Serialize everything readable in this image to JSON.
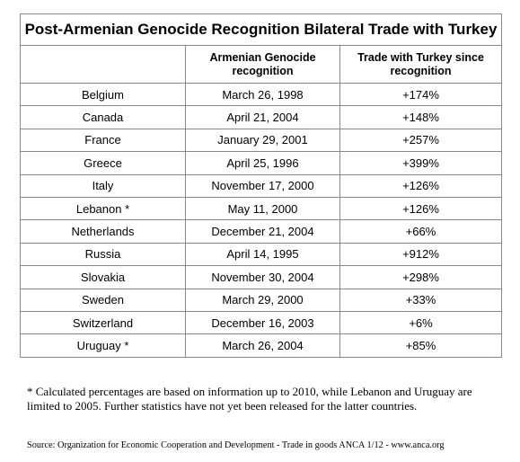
{
  "table": {
    "title": "Post-Armenian Genocide Recognition Bilateral Trade with Turkey",
    "columns": [
      "",
      "Armenian Genocide recognition",
      "Trade with Turkey since recognition"
    ],
    "rows": [
      [
        "Belgium",
        "March 26, 1998",
        "+174%"
      ],
      [
        "Canada",
        "April 21, 2004",
        "+148%"
      ],
      [
        "France",
        "January 29, 2001",
        "+257%"
      ],
      [
        "Greece",
        "April 25, 1996",
        "+399%"
      ],
      [
        "Italy",
        "November 17, 2000",
        "+126%"
      ],
      [
        "Lebanon *",
        "May 11, 2000",
        "+126%"
      ],
      [
        "Netherlands",
        "December 21, 2004",
        "+66%"
      ],
      [
        "Russia",
        "April 14, 1995",
        "+912%"
      ],
      [
        "Slovakia",
        "November 30, 2004",
        "+298%"
      ],
      [
        "Sweden",
        "March 29, 2000",
        "+33%"
      ],
      [
        "Switzerland",
        "December 16, 2003",
        "+6%"
      ],
      [
        "Uruguay *",
        "March 26, 2004",
        "+85%"
      ]
    ]
  },
  "footnote": "* Calculated percentages are based on information up to 2010, while Lebanon and Uruguay are limited to 2005. Further statistics have not yet been released for the latter countries.",
  "source": "Source: Organization for Economic Cooperation and Development - Trade in goods ANCA 1/12 - www.anca.org"
}
